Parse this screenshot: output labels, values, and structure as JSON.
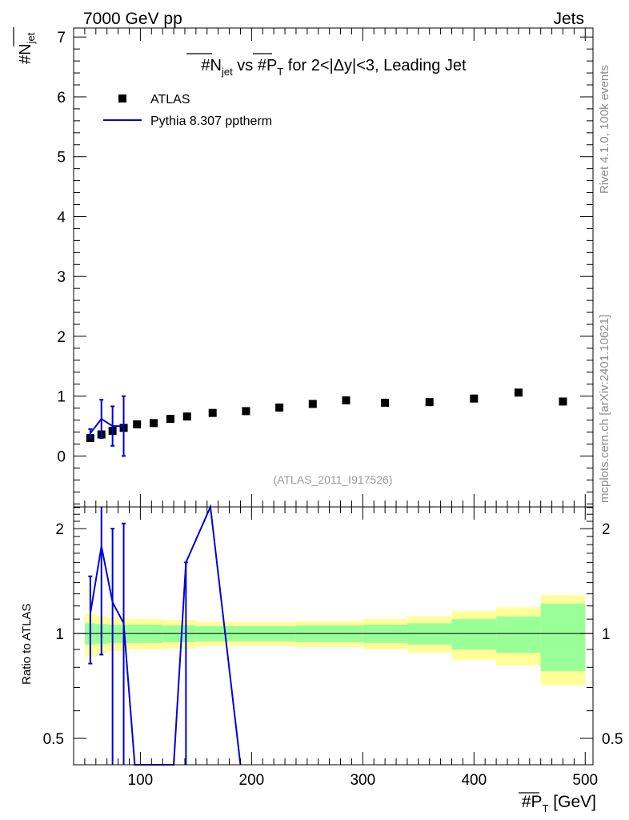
{
  "header": {
    "left": "7000 GeV pp",
    "right": "Jets",
    "side_top": "Rivet 4.1.0,  100k events",
    "side_bottom": "mcplots.cern.ch [arXiv:2401.10621]"
  },
  "chart_data": {
    "type": "scatter",
    "title": {
      "pre": "#N",
      "sub": "jet",
      "mid": " vs #P",
      "sub2": "T",
      "post": " for 2<|Δy|<3, Leading Jet"
    },
    "ylabel": {
      "main": "#N",
      "sub": "jet"
    },
    "xlabel": {
      "main": "#P",
      "sub": "T",
      "unit": " [GeV]"
    },
    "ratio_ylabel": "Ratio to ATLAS",
    "analysis_id": "(ATLAS_2011_I917526)",
    "xlim": [
      40,
      507
    ],
    "ylim": [
      -0.85,
      7.15
    ],
    "ratio_ylim": [
      0.42,
      2.31
    ],
    "x_ticks": [
      100,
      200,
      300,
      400,
      500
    ],
    "x_tick_labels": [
      "100",
      "200",
      "300",
      "400",
      "500"
    ],
    "y_ticks": [
      0,
      1,
      2,
      3,
      4,
      5,
      6,
      7
    ],
    "y_tick_labels": [
      "0",
      "1",
      "2",
      "3",
      "4",
      "5",
      "6",
      "7"
    ],
    "ratio_ticks": [
      0.5,
      1,
      2
    ],
    "ratio_tick_labels": [
      "0.5",
      "1",
      "2"
    ],
    "legend": {
      "data_label": "ATLAS",
      "mc_label": "Pythia 8.307 pptherm"
    },
    "colors": {
      "mc": "#0000dd",
      "band_inner": "#99ff99",
      "band_outer": "#ffff99",
      "data": "#000000"
    },
    "data_points": [
      {
        "x": 55,
        "y": 0.3,
        "xlo": 50,
        "xhi": 60
      },
      {
        "x": 65,
        "y": 0.36,
        "xlo": 60,
        "xhi": 70
      },
      {
        "x": 75,
        "y": 0.42,
        "xlo": 70,
        "xhi": 80
      },
      {
        "x": 85,
        "y": 0.47,
        "xlo": 80,
        "xhi": 90
      },
      {
        "x": 97,
        "y": 0.53,
        "xlo": 90,
        "xhi": 105
      },
      {
        "x": 112,
        "y": 0.55,
        "xlo": 105,
        "xhi": 120
      },
      {
        "x": 127,
        "y": 0.62,
        "xlo": 120,
        "xhi": 135
      },
      {
        "x": 142,
        "y": 0.66,
        "xlo": 135,
        "xhi": 150
      },
      {
        "x": 165,
        "y": 0.72,
        "xlo": 150,
        "xhi": 180
      },
      {
        "x": 195,
        "y": 0.75,
        "xlo": 180,
        "xhi": 210
      },
      {
        "x": 225,
        "y": 0.81,
        "xlo": 210,
        "xhi": 240
      },
      {
        "x": 255,
        "y": 0.87,
        "xlo": 240,
        "xhi": 270
      },
      {
        "x": 285,
        "y": 0.93,
        "xlo": 270,
        "xhi": 300
      },
      {
        "x": 320,
        "y": 0.89,
        "xlo": 300,
        "xhi": 340
      },
      {
        "x": 360,
        "y": 0.9,
        "xlo": 340,
        "xhi": 380
      },
      {
        "x": 400,
        "y": 0.96,
        "xlo": 380,
        "xhi": 420
      },
      {
        "x": 440,
        "y": 1.06,
        "xlo": 420,
        "xhi": 460
      },
      {
        "x": 480,
        "y": 0.91,
        "xlo": 460,
        "xhi": 500
      }
    ],
    "mc_main": [
      {
        "x": 55,
        "y": 0.38,
        "err": 0.07
      },
      {
        "x": 65,
        "y": 0.62,
        "err": 0.32
      },
      {
        "x": 75,
        "y": 0.5,
        "err": 0.33
      },
      {
        "x": 85,
        "y": 0.5,
        "err": 0.5
      }
    ],
    "ratio_band": [
      {
        "xlo": 50,
        "xhi": 60,
        "inner": 0.07,
        "outer": 0.14
      },
      {
        "xlo": 60,
        "xhi": 70,
        "inner": 0.065,
        "outer": 0.125
      },
      {
        "xlo": 70,
        "xhi": 90,
        "inner": 0.06,
        "outer": 0.11
      },
      {
        "xlo": 90,
        "xhi": 120,
        "inner": 0.06,
        "outer": 0.1
      },
      {
        "xlo": 120,
        "xhi": 150,
        "inner": 0.055,
        "outer": 0.095
      },
      {
        "xlo": 150,
        "xhi": 240,
        "inner": 0.05,
        "outer": 0.08
      },
      {
        "xlo": 240,
        "xhi": 300,
        "inner": 0.055,
        "outer": 0.085
      },
      {
        "xlo": 300,
        "xhi": 340,
        "inner": 0.06,
        "outer": 0.1
      },
      {
        "xlo": 340,
        "xhi": 380,
        "inner": 0.07,
        "outer": 0.12
      },
      {
        "xlo": 380,
        "xhi": 420,
        "inner": 0.1,
        "outer": 0.16
      },
      {
        "xlo": 420,
        "xhi": 460,
        "inner": 0.12,
        "outer": 0.19
      },
      {
        "xlo": 460,
        "xhi": 500,
        "inner": 0.22,
        "outer": 0.29
      }
    ],
    "mc_ratio_line": [
      {
        "x": 55,
        "y": 1.14
      },
      {
        "x": 65,
        "y": 1.78
      },
      {
        "x": 75,
        "y": 1.23
      },
      {
        "x": 85,
        "y": 1.07
      },
      {
        "x": 95,
        "y": 0.3
      },
      {
        "x": 130,
        "y": 0.3
      },
      {
        "x": 141,
        "y": 1.6
      },
      {
        "x": 163,
        "y": 2.35
      },
      {
        "x": 190,
        "y": 0.3
      }
    ],
    "mc_ratio_err": [
      {
        "x": 55,
        "lo": 0.82,
        "hi": 1.46
      },
      {
        "x": 65,
        "lo": 0.87,
        "hi": 2.4
      },
      {
        "x": 75,
        "lo": 0.3,
        "hi": 2.0
      },
      {
        "x": 85,
        "lo": 0.3,
        "hi": 2.07
      },
      {
        "x": 141,
        "lo": 0.3,
        "hi": 1.6
      }
    ]
  }
}
